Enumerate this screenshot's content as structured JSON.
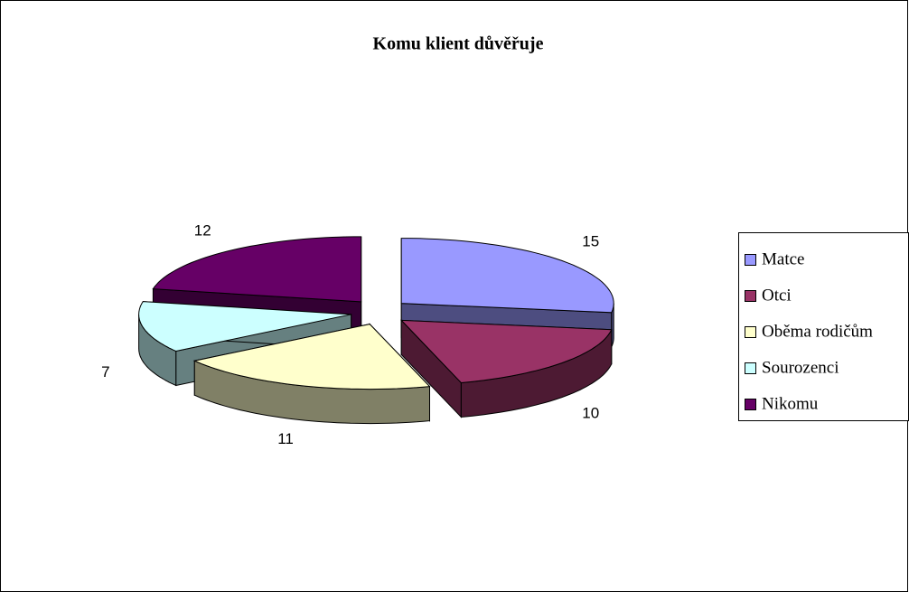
{
  "chart_data": {
    "type": "pie",
    "title": "Komu klient důvěřuje",
    "categories": [
      "Matce",
      "Otci",
      "Oběma rodičům",
      "Sourozenci",
      "Nikomu"
    ],
    "values": [
      15,
      10,
      11,
      7,
      12
    ],
    "colors": [
      "#9999ff",
      "#993366",
      "#ffffcc",
      "#ccffff",
      "#660066"
    ],
    "legend": "right"
  }
}
